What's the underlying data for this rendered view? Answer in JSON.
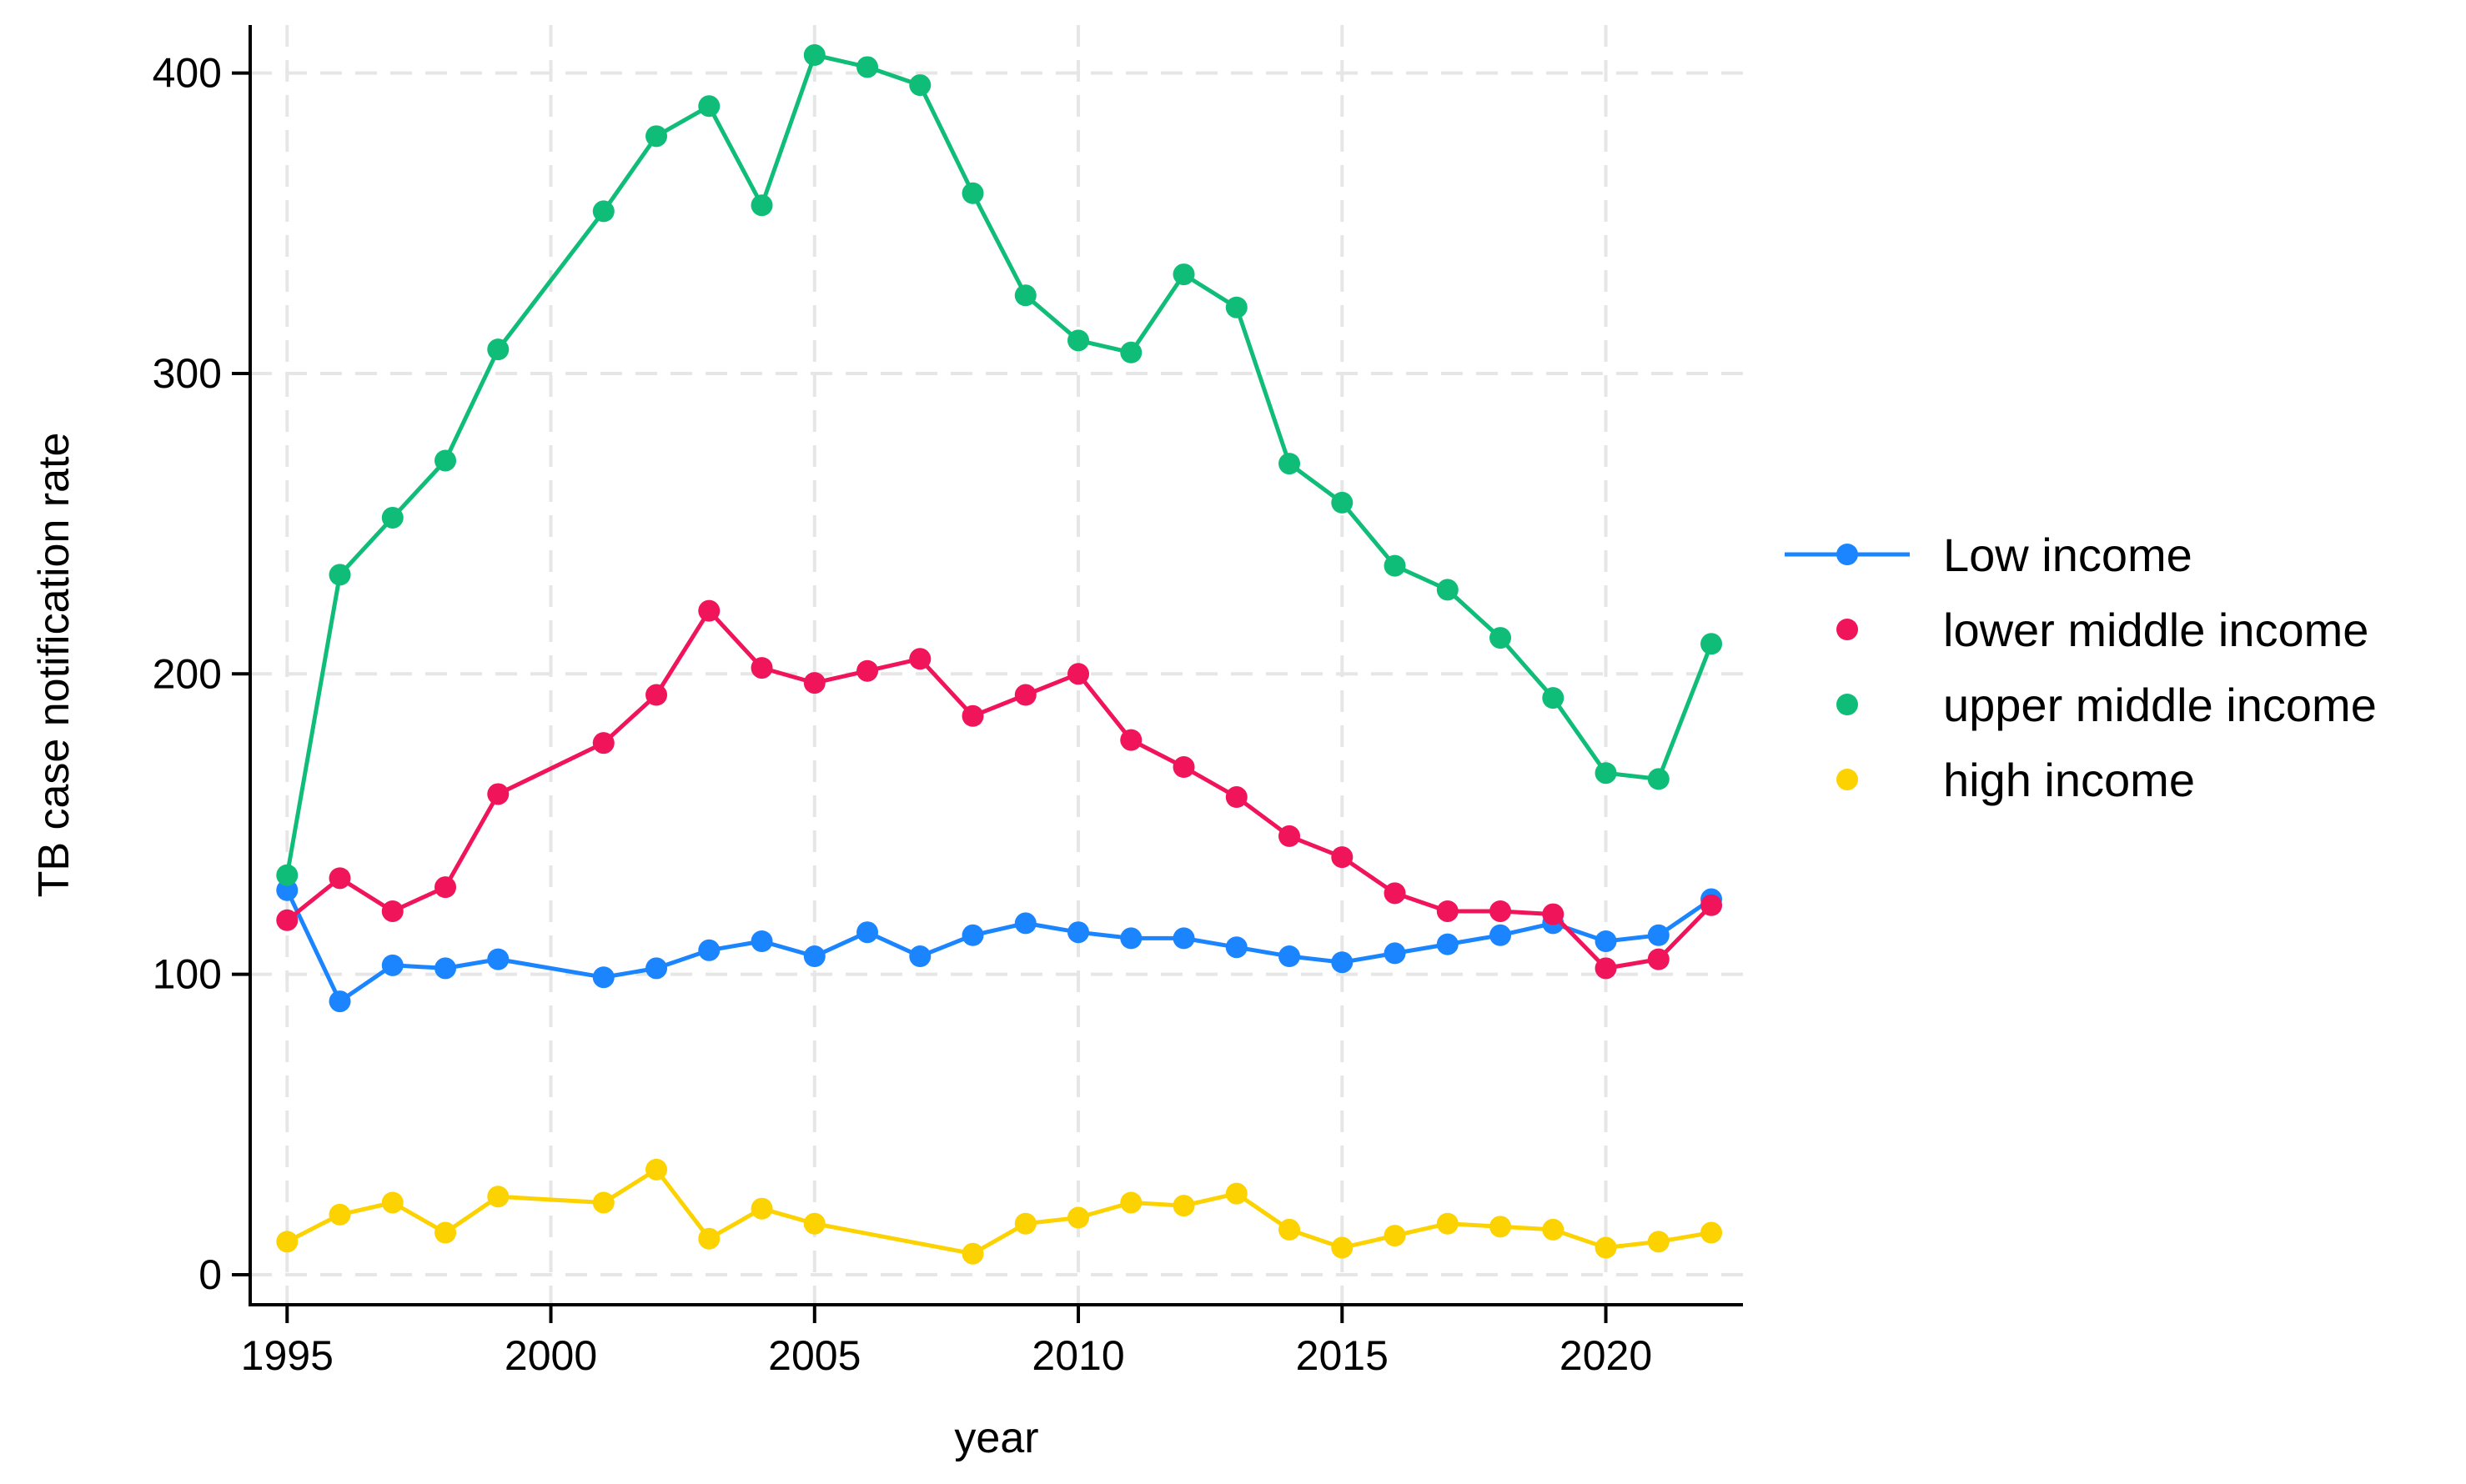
{
  "chart_data": {
    "type": "line",
    "title": "",
    "xlabel": "year",
    "ylabel": "TB case notification rate",
    "xlim": [
      1994.3,
      2022.6
    ],
    "ylim": [
      -10,
      416
    ],
    "xticks": [
      1995,
      2000,
      2005,
      2010,
      2015,
      2020
    ],
    "yticks": [
      0,
      100,
      200,
      300,
      400
    ],
    "grid": true,
    "legend_position": "right",
    "series": [
      {
        "name": "Low income",
        "color": "#1a85ff",
        "show_line_in_legend": true,
        "points": [
          [
            1995,
            128
          ],
          [
            1996,
            91
          ],
          [
            1997,
            103
          ],
          [
            1998,
            102
          ],
          [
            1999,
            105
          ],
          [
            2001,
            99
          ],
          [
            2002,
            102
          ],
          [
            2003,
            108
          ],
          [
            2004,
            111
          ],
          [
            2005,
            106
          ],
          [
            2006,
            114
          ],
          [
            2007,
            106
          ],
          [
            2008,
            113
          ],
          [
            2009,
            117
          ],
          [
            2010,
            114
          ],
          [
            2011,
            112
          ],
          [
            2012,
            112
          ],
          [
            2013,
            109
          ],
          [
            2014,
            106
          ],
          [
            2015,
            104
          ],
          [
            2016,
            107
          ],
          [
            2017,
            110
          ],
          [
            2018,
            113
          ],
          [
            2019,
            117
          ],
          [
            2020,
            111
          ],
          [
            2021,
            113
          ],
          [
            2022,
            125
          ]
        ]
      },
      {
        "name": "lower middle income",
        "color": "#f0145a",
        "show_line_in_legend": false,
        "points": [
          [
            1995,
            118
          ],
          [
            1996,
            132
          ],
          [
            1997,
            121
          ],
          [
            1998,
            129
          ],
          [
            1999,
            160
          ],
          [
            2001,
            177
          ],
          [
            2002,
            193
          ],
          [
            2003,
            221
          ],
          [
            2004,
            202
          ],
          [
            2005,
            197
          ],
          [
            2006,
            201
          ],
          [
            2007,
            205
          ],
          [
            2008,
            186
          ],
          [
            2009,
            193
          ],
          [
            2010,
            200
          ],
          [
            2011,
            178
          ],
          [
            2012,
            169
          ],
          [
            2013,
            159
          ],
          [
            2014,
            146
          ],
          [
            2015,
            139
          ],
          [
            2016,
            127
          ],
          [
            2017,
            121
          ],
          [
            2018,
            121
          ],
          [
            2019,
            120
          ],
          [
            2020,
            102
          ],
          [
            2021,
            105
          ],
          [
            2022,
            123
          ]
        ]
      },
      {
        "name": "upper middle income",
        "color": "#0fbd78",
        "show_line_in_legend": false,
        "points": [
          [
            1995,
            133
          ],
          [
            1996,
            233
          ],
          [
            1997,
            252
          ],
          [
            1998,
            271
          ],
          [
            1999,
            308
          ],
          [
            2001,
            354
          ],
          [
            2002,
            379
          ],
          [
            2003,
            389
          ],
          [
            2004,
            356
          ],
          [
            2005,
            406
          ],
          [
            2006,
            402
          ],
          [
            2007,
            396
          ],
          [
            2008,
            360
          ],
          [
            2009,
            326
          ],
          [
            2010,
            311
          ],
          [
            2011,
            307
          ],
          [
            2012,
            333
          ],
          [
            2013,
            322
          ],
          [
            2014,
            270
          ],
          [
            2015,
            257
          ],
          [
            2016,
            236
          ],
          [
            2017,
            228
          ],
          [
            2018,
            212
          ],
          [
            2019,
            192
          ],
          [
            2020,
            167
          ],
          [
            2021,
            165
          ],
          [
            2022,
            210
          ]
        ]
      },
      {
        "name": "high income",
        "color": "#fcd200",
        "show_line_in_legend": false,
        "points": [
          [
            1995,
            11
          ],
          [
            1996,
            20
          ],
          [
            1997,
            24
          ],
          [
            1998,
            14
          ],
          [
            1999,
            26
          ],
          [
            2001,
            24
          ],
          [
            2002,
            35
          ],
          [
            2003,
            12
          ],
          [
            2004,
            22
          ],
          [
            2005,
            17
          ],
          [
            2008,
            7
          ],
          [
            2009,
            17
          ],
          [
            2010,
            19
          ],
          [
            2011,
            24
          ],
          [
            2012,
            23
          ],
          [
            2013,
            27
          ],
          [
            2014,
            15
          ],
          [
            2015,
            9
          ],
          [
            2016,
            13
          ],
          [
            2017,
            17
          ],
          [
            2018,
            16
          ],
          [
            2019,
            15
          ],
          [
            2020,
            9
          ],
          [
            2021,
            11
          ],
          [
            2022,
            14
          ]
        ]
      }
    ]
  }
}
